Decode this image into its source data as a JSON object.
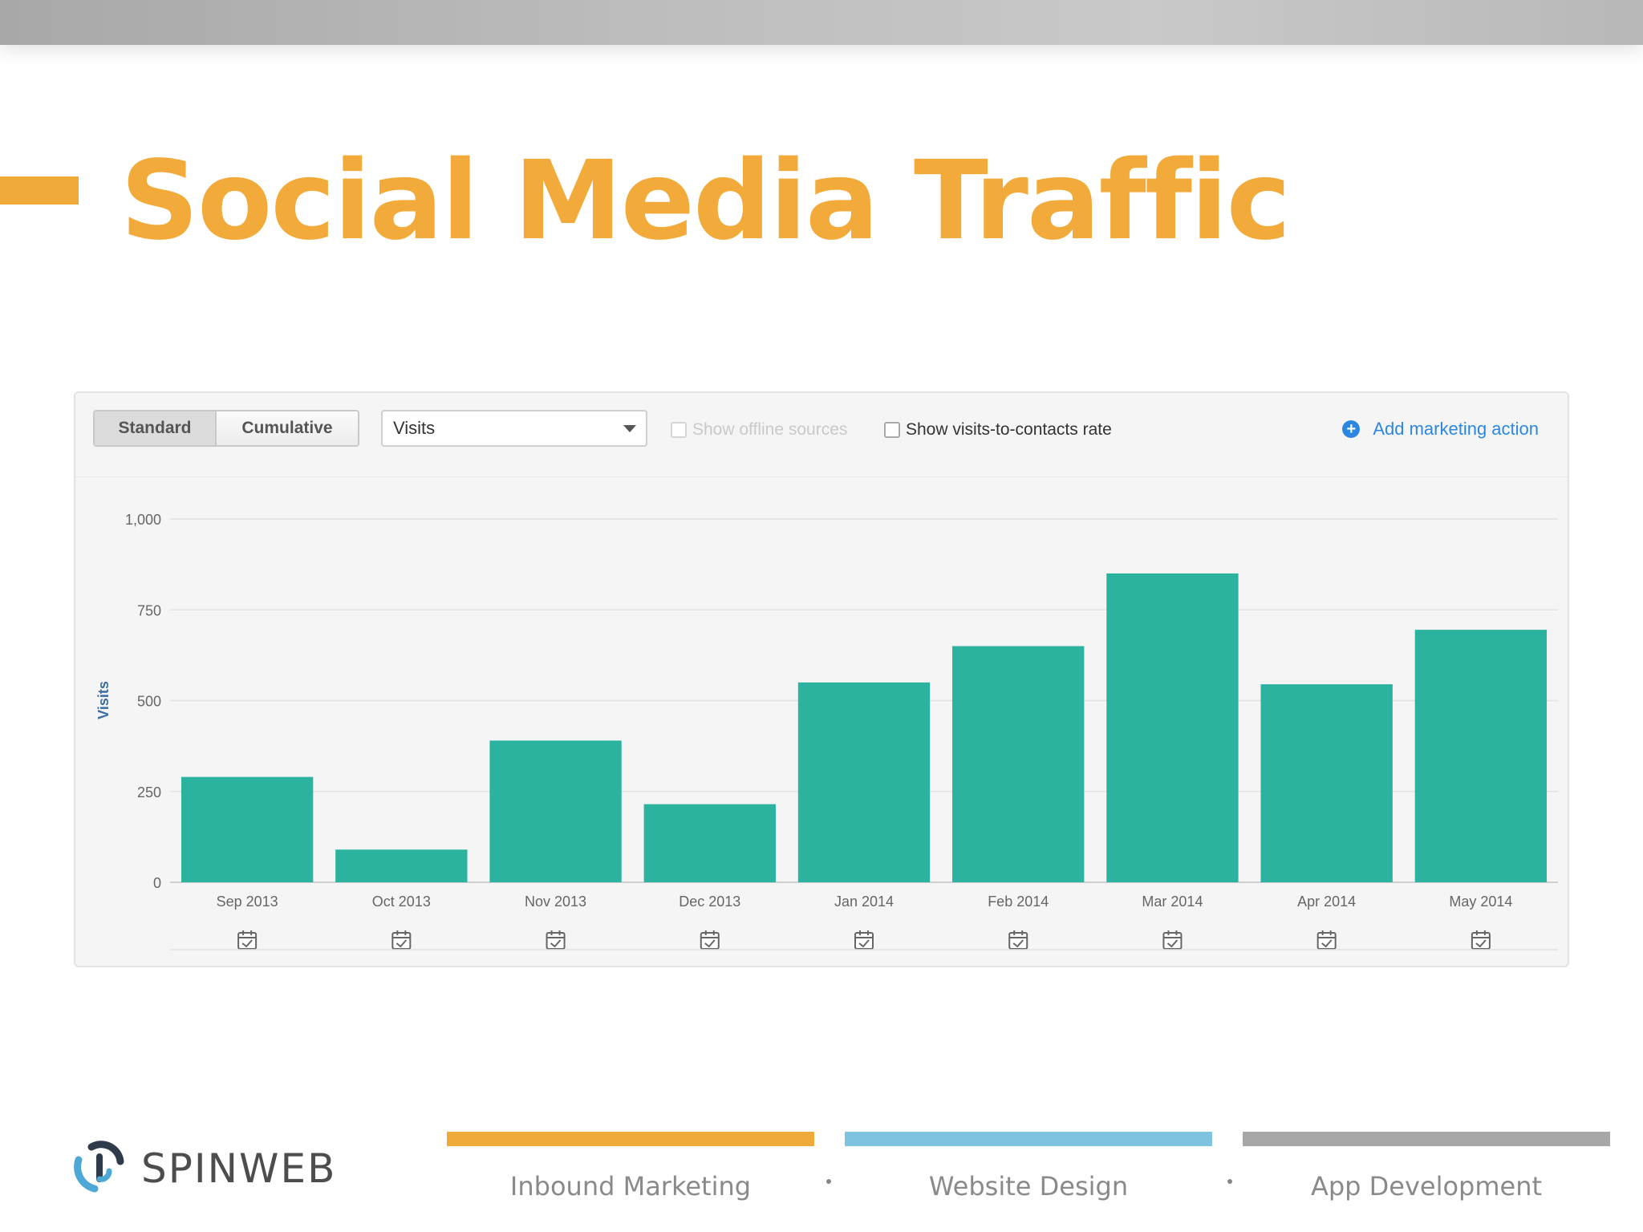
{
  "slide": {
    "title": "Social Media Traffic"
  },
  "toolbar": {
    "mode_standard": "Standard",
    "mode_cumulative": "Cumulative",
    "metric_select": "Visits",
    "show_offline_sources": "Show offline sources",
    "show_visits_to_contacts": "Show visits-to-contacts rate",
    "add_marketing_action": "Add marketing action"
  },
  "chart_data": {
    "type": "bar",
    "categories": [
      "Sep 2013",
      "Oct 2013",
      "Nov 2013",
      "Dec 2013",
      "Jan 2014",
      "Feb 2014",
      "Mar 2014",
      "Apr 2014",
      "May 2014"
    ],
    "values": [
      290,
      90,
      390,
      215,
      550,
      650,
      850,
      545,
      695
    ],
    "ylabel": "Visits",
    "xlabel": "",
    "ylim": [
      0,
      1000
    ],
    "yticks": [
      0,
      250,
      500,
      750,
      1000
    ],
    "ytick_labels": [
      "0",
      "250",
      "500",
      "750",
      "1,000"
    ],
    "grid": true,
    "bar_color": "#2bb3a0",
    "marker_icon": "calendar-check-icon"
  },
  "footer": {
    "brand": "SPINWEB",
    "services": [
      {
        "label": "Inbound Marketing",
        "color": "#f0aa3a"
      },
      {
        "label": "Website Design",
        "color": "#7ec3df"
      },
      {
        "label": "App Development",
        "color": "#a7a7a7"
      }
    ]
  }
}
